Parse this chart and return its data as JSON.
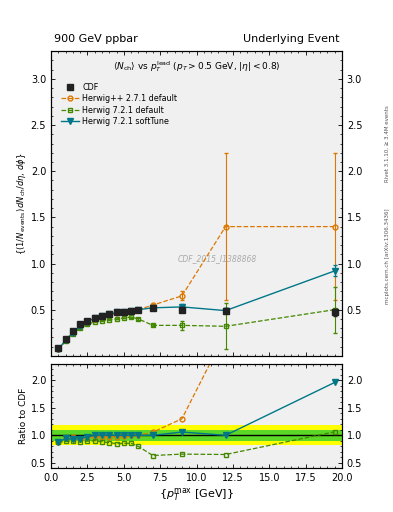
{
  "title_left": "900 GeV ppbar",
  "title_right": "Underlying Event",
  "ylabel_main": "((1/N_{events}) dN_{ch}/d#eta, d#phi)",
  "ylabel_ratio": "Ratio to CDF",
  "xlabel": "{p_{T}^{max} [GeV]}",
  "watermark": "CDF_2015_I1388868",
  "right_label": "mcplots.cern.ch [arXiv:1306.3436]",
  "rivet_label": "Rivet 3.1.10, ≥ 3.4M events",
  "cdf_x": [
    0.5,
    1.0,
    1.5,
    2.0,
    2.5,
    3.0,
    3.5,
    4.0,
    4.5,
    5.0,
    5.5,
    6.0,
    7.0,
    9.0,
    12.0,
    19.5
  ],
  "cdf_y": [
    0.08,
    0.18,
    0.27,
    0.34,
    0.38,
    0.41,
    0.43,
    0.45,
    0.47,
    0.48,
    0.49,
    0.5,
    0.52,
    0.5,
    0.49,
    0.47
  ],
  "cdf_yerr": [
    0.005,
    0.008,
    0.008,
    0.008,
    0.008,
    0.008,
    0.008,
    0.008,
    0.01,
    0.01,
    0.01,
    0.02,
    0.02,
    0.03,
    0.03,
    0.04
  ],
  "hpp_x": [
    0.5,
    1.0,
    1.5,
    2.0,
    2.5,
    3.0,
    3.5,
    4.0,
    4.5,
    5.0,
    5.5,
    6.0,
    7.0,
    9.0,
    12.0,
    19.5
  ],
  "hpp_y": [
    0.07,
    0.17,
    0.26,
    0.32,
    0.37,
    0.4,
    0.42,
    0.44,
    0.46,
    0.47,
    0.49,
    0.5,
    0.55,
    0.65,
    1.4,
    1.4
  ],
  "hpp_yerr": [
    0.003,
    0.004,
    0.004,
    0.004,
    0.004,
    0.004,
    0.004,
    0.004,
    0.004,
    0.004,
    0.005,
    0.008,
    0.01,
    0.05,
    0.8,
    0.8
  ],
  "h721_x": [
    0.5,
    1.0,
    1.5,
    2.0,
    2.5,
    3.0,
    3.5,
    4.0,
    4.5,
    5.0,
    5.5,
    6.0,
    7.0,
    9.0,
    12.0,
    19.5
  ],
  "h721_y": [
    0.07,
    0.16,
    0.24,
    0.3,
    0.34,
    0.37,
    0.38,
    0.39,
    0.4,
    0.41,
    0.42,
    0.4,
    0.33,
    0.33,
    0.32,
    0.5
  ],
  "h721_yerr": [
    0.003,
    0.004,
    0.004,
    0.004,
    0.004,
    0.004,
    0.004,
    0.004,
    0.004,
    0.004,
    0.005,
    0.008,
    0.01,
    0.05,
    0.25,
    0.25
  ],
  "soft_x": [
    0.5,
    1.0,
    1.5,
    2.0,
    2.5,
    3.0,
    3.5,
    4.0,
    4.5,
    5.0,
    5.5,
    6.0,
    7.0,
    9.0,
    12.0,
    19.5
  ],
  "soft_y": [
    0.07,
    0.17,
    0.25,
    0.32,
    0.37,
    0.41,
    0.43,
    0.45,
    0.47,
    0.48,
    0.49,
    0.5,
    0.52,
    0.53,
    0.49,
    0.92
  ],
  "soft_yerr": [
    0.003,
    0.004,
    0.004,
    0.004,
    0.004,
    0.004,
    0.004,
    0.004,
    0.004,
    0.004,
    0.005,
    0.008,
    0.01,
    0.03,
    0.03,
    0.06
  ],
  "color_cdf": "#222222",
  "color_hpp": "#dd7700",
  "color_h721": "#448800",
  "color_soft": "#007788",
  "xlim": [
    0,
    20
  ],
  "ylim_main": [
    0,
    3.3
  ],
  "ylim_ratio": [
    0.4,
    2.3
  ],
  "yticks_main": [
    0.5,
    1.0,
    1.5,
    2.0,
    2.5,
    3.0
  ],
  "yticks_ratio": [
    0.5,
    1.0,
    1.5,
    2.0
  ],
  "yellow_band_lo": 0.82,
  "yellow_band_hi": 1.18,
  "green_band_lo": 0.9,
  "green_band_hi": 1.1,
  "bg_color": "#f0f0f0"
}
